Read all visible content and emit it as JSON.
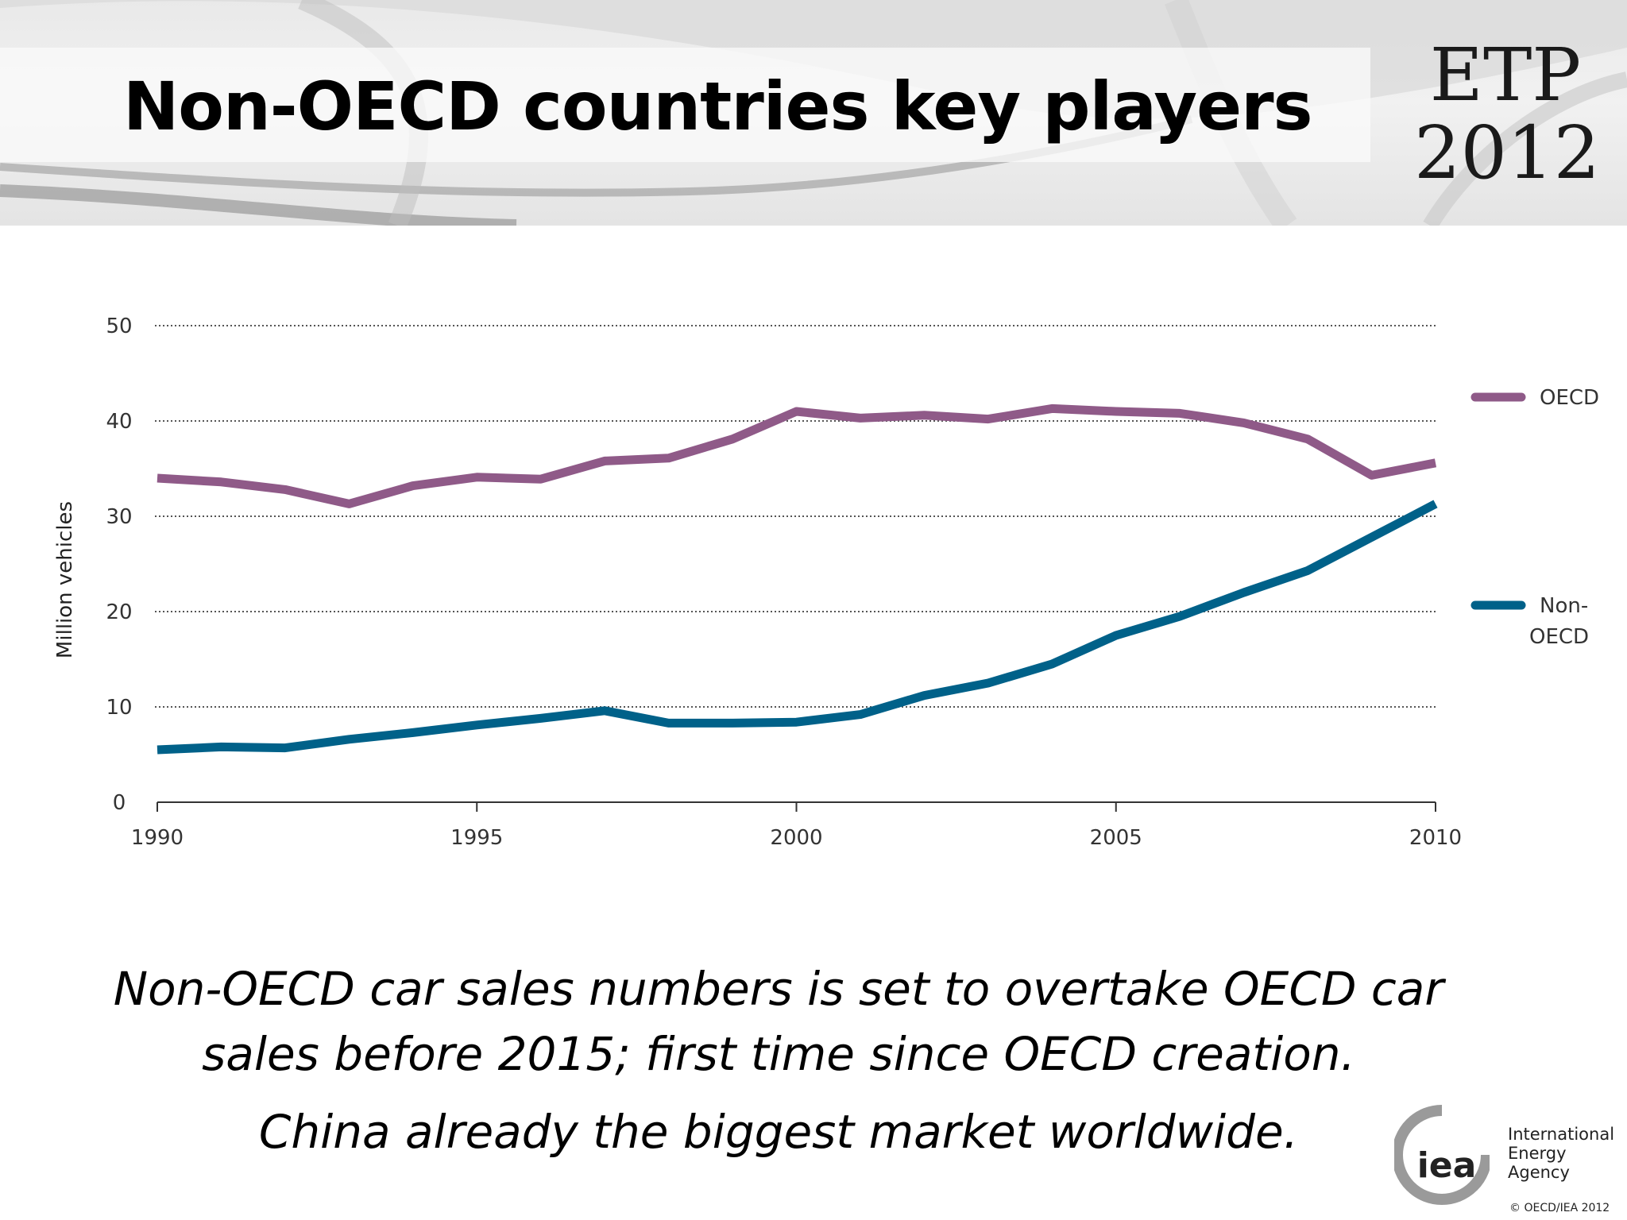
{
  "slide": {
    "title": "Non-OECD countries key players",
    "badge_line1": "ETP",
    "badge_line2": "2012",
    "caption_line1": "Non-OECD car sales numbers is set to overtake OECD car sales before 2015; first time since OECD creation.",
    "caption_line2": "China already the biggest market worldwide.",
    "org_name_line1": "International",
    "org_name_line2": "Energy Agency",
    "logo_text": "iea",
    "copyright": "© OECD/IEA 2012"
  },
  "chart_data": {
    "type": "line",
    "title": "",
    "xlabel": "",
    "ylabel": "Million vehicles",
    "xlim": [
      1990,
      2010
    ],
    "ylim": [
      0,
      50
    ],
    "x_ticks": [
      1990,
      1995,
      2000,
      2005,
      2010
    ],
    "y_ticks": [
      0,
      10,
      20,
      30,
      40,
      50
    ],
    "grid": "horizontal dotted",
    "legend_position": "right",
    "x": [
      1990,
      1991,
      1992,
      1993,
      1994,
      1995,
      1996,
      1997,
      1998,
      1999,
      2000,
      2001,
      2002,
      2003,
      2004,
      2005,
      2006,
      2007,
      2008,
      2009,
      2010
    ],
    "series": [
      {
        "name": "OECD",
        "color": "#8f5a88",
        "values": [
          34.0,
          33.6,
          32.8,
          31.3,
          33.2,
          34.1,
          33.9,
          35.8,
          36.1,
          38.1,
          41.0,
          40.3,
          40.6,
          40.2,
          41.3,
          41.0,
          40.8,
          39.8,
          38.1,
          34.3,
          35.6
        ]
      },
      {
        "name": "Non-OECD",
        "name_lines": [
          "Non-",
          "OECD"
        ],
        "color": "#006189",
        "values": [
          5.5,
          5.8,
          5.7,
          6.6,
          7.3,
          8.1,
          8.8,
          9.6,
          8.3,
          8.3,
          8.4,
          9.2,
          11.2,
          12.5,
          14.5,
          17.5,
          19.5,
          22.0,
          24.3,
          27.8,
          31.3
        ]
      }
    ]
  }
}
